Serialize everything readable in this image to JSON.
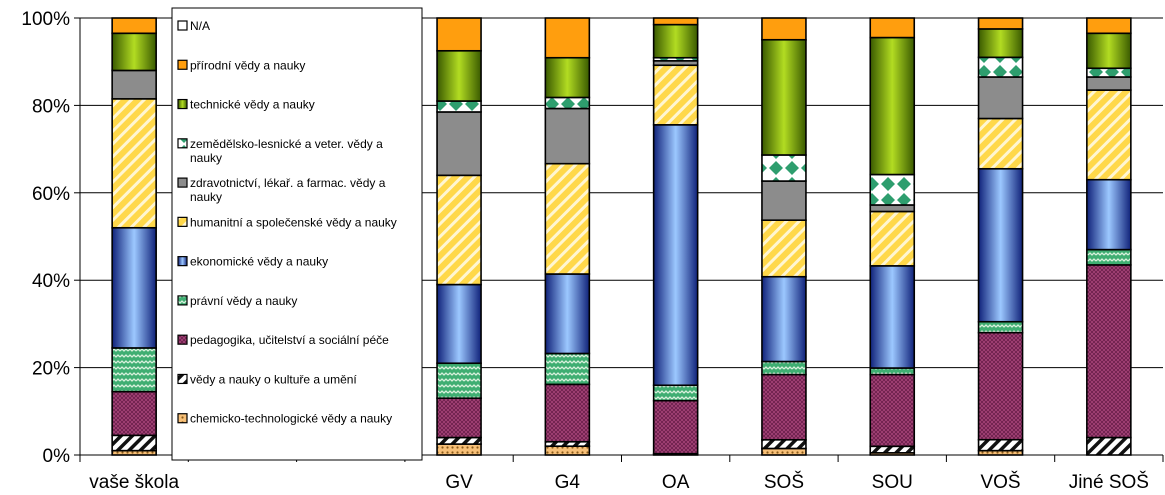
{
  "chart_data": {
    "type": "bar",
    "stacked": true,
    "percent": true,
    "ylim": [
      0,
      100
    ],
    "y_ticks": [
      "0%",
      "20%",
      "40%",
      "60%",
      "80%",
      "100%"
    ],
    "grid": "horizontal",
    "legend_position": "overlay-left",
    "categories": [
      "vaše škola",
      "",
      "",
      "GV",
      "G4",
      "OA",
      "SOŠ",
      "SOU",
      "VOŠ",
      "Jiné SOŠ"
    ],
    "series": [
      {
        "name": "chemicko-technologické vědy a nauky",
        "color": "#f5a84c",
        "pattern": "dots",
        "values": [
          1,
          0,
          0,
          2.5,
          2,
          0.3,
          1.5,
          0.5,
          1,
          0
        ]
      },
      {
        "name": "vědy a nauky o kultuře a umění",
        "color": "#ffffff",
        "pattern": "diagonal-black",
        "values": [
          3.5,
          0,
          0,
          1.5,
          1,
          0,
          2,
          1.5,
          2.5,
          4
        ]
      },
      {
        "name": "pedagogika, učitelství a sociální péče",
        "color": "#a63e6e",
        "pattern": "crosshatch",
        "values": [
          10,
          0,
          0,
          9,
          13,
          12,
          15,
          16.5,
          24.5,
          39.5
        ]
      },
      {
        "name": "právní vědy a nauky",
        "color": "#3fae72",
        "pattern": "zigzag",
        "values": [
          10,
          0,
          0,
          8,
          7,
          3.5,
          3,
          1.5,
          2.5,
          3.5
        ]
      },
      {
        "name": "ekonomické vědy a nauky",
        "color": "#3a6ad8",
        "pattern": "gradient",
        "values": [
          27.5,
          0,
          0,
          18,
          18,
          59,
          19.5,
          23.5,
          35,
          16
        ]
      },
      {
        "name": "humanitní a společenské vědy a nauky",
        "color": "#ffd84a",
        "pattern": "diagonal-white",
        "values": [
          29.5,
          0,
          0,
          25,
          25,
          13.5,
          13,
          12.5,
          11.5,
          20.5
        ]
      },
      {
        "name": "zdravotnictví, lékař. a farmac. vědy a nauky",
        "color": "#8c8c8c",
        "pattern": "solid",
        "values": [
          6.5,
          0,
          0,
          14.5,
          12.5,
          1,
          9,
          1.5,
          9.5,
          3
        ]
      },
      {
        "name": "zemědělsko-lesnické a veter. vědy a nauky",
        "color": "#2e9e6e",
        "pattern": "diamonds",
        "values": [
          0,
          0,
          0,
          2.5,
          2.5,
          0.7,
          6,
          7,
          4.5,
          2
        ]
      },
      {
        "name": "technické vědy a nauky",
        "color": "#7ea61a",
        "pattern": "gradient",
        "values": [
          8.5,
          0,
          0,
          11.5,
          9,
          7.5,
          26.5,
          31.5,
          6.5,
          8
        ]
      },
      {
        "name": "přírodní vědy a nauky",
        "color": "#ff9e0e",
        "pattern": "solid",
        "values": [
          3.5,
          0,
          0,
          7.5,
          9,
          1.5,
          5,
          4.5,
          2.5,
          3.5
        ]
      },
      {
        "name": "N/A",
        "color": "#ffffff",
        "pattern": "white",
        "values": [
          0,
          0,
          0,
          0,
          0,
          0,
          0,
          0,
          0,
          0
        ]
      }
    ]
  }
}
